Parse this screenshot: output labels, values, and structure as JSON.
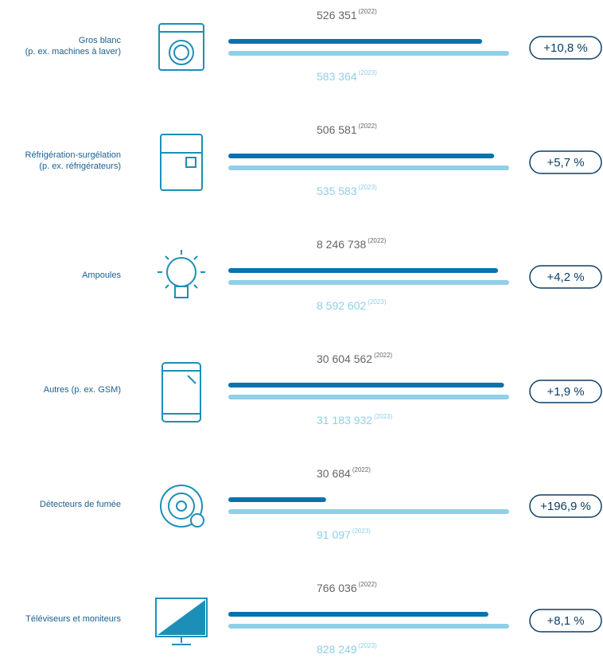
{
  "chart_data": {
    "type": "bar",
    "categories": [
      [
        "Gros blanc",
        "(p. ex. machines à laver)"
      ],
      [
        "Réfrigération-surgélation",
        "(p. ex. réfrigérateurs)"
      ],
      [
        "Ampoules"
      ],
      [
        "Autres (p. ex. GSM)"
      ],
      [
        "Détecteurs de fumée"
      ],
      [
        "Téléviseurs et moniteurs"
      ]
    ],
    "series": [
      {
        "name": "(2022)",
        "color": "#0a72ad",
        "values": [
          526351,
          506581,
          8246738,
          30604562,
          30684,
          766036
        ],
        "value_labels": [
          "526 351",
          "506 581",
          "8 246 738",
          "30 604 562",
          "30 684",
          "766 036"
        ]
      },
      {
        "name": "(2023)",
        "color": "#8fcfe8",
        "values": [
          583364,
          535583,
          8592602,
          31183932,
          91097,
          828249
        ],
        "value_labels": [
          "583 364",
          "535 583",
          "8 592 602",
          "31 183 932",
          "91 097",
          "828 249"
        ]
      }
    ],
    "changes": [
      {
        "value": 10.8,
        "label": "+10,8 %"
      },
      {
        "value": 5.7,
        "label": "+5,7 %"
      },
      {
        "value": 4.2,
        "label": "+4,2 %"
      },
      {
        "value": 1.9,
        "label": "+1,9 %"
      },
      {
        "value": 196.9,
        "label": "+196,9 %"
      },
      {
        "value": 8.1,
        "label": "+8,1 %"
      }
    ]
  }
}
